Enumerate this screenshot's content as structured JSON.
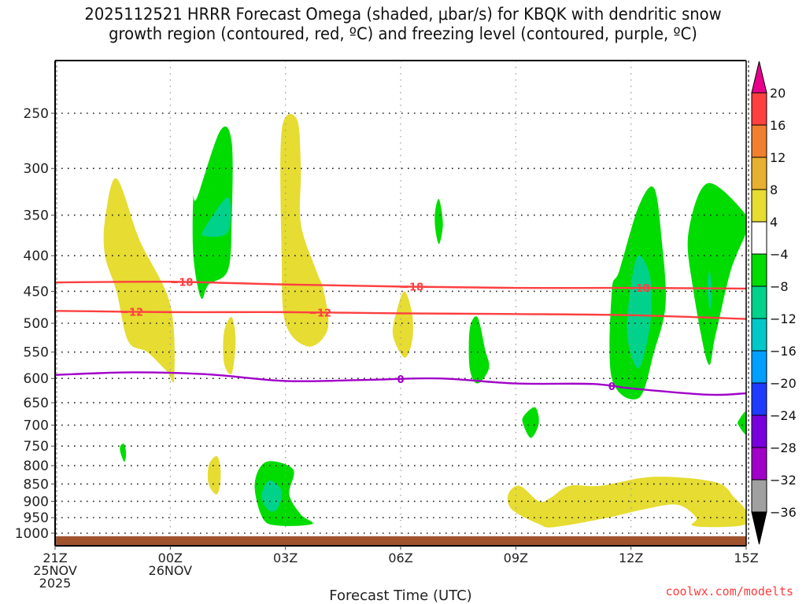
{
  "chart_data": {
    "type": "heatmap",
    "title_lines": [
      "2025112521 HRRR Forecast Omega (shaded, μbar/s) for KBQK with dendritic snow",
      "growth region (contoured, red, ºC) and freezing level (contoured, purple, ºC)"
    ],
    "xlabel": "Forecast Time (UTC)",
    "ylabel": "",
    "credit": "coolwx.com/modelts",
    "x_range_hours": [
      0,
      18
    ],
    "x_ticks": [
      {
        "hour": 0,
        "lines": [
          "21Z",
          "25NOV",
          "2025"
        ]
      },
      {
        "hour": 3,
        "lines": [
          "00Z",
          "26NOV"
        ]
      },
      {
        "hour": 6,
        "lines": [
          "03Z"
        ]
      },
      {
        "hour": 9,
        "lines": [
          "06Z"
        ]
      },
      {
        "hour": 12,
        "lines": [
          "09Z"
        ]
      },
      {
        "hour": 15,
        "lines": [
          "12Z"
        ]
      },
      {
        "hour": 18,
        "lines": [
          "15Z"
        ]
      }
    ],
    "y_axis": {
      "scale": "log-pressure",
      "range_hPa": [
        1020,
        200
      ],
      "inverted": true
    },
    "y_ticks": [
      250,
      300,
      350,
      400,
      450,
      500,
      550,
      600,
      650,
      700,
      750,
      800,
      850,
      900,
      950,
      1000
    ],
    "grid": "dotted",
    "ground_fill": {
      "from_hPa": 1010,
      "color": "#a0522d"
    },
    "colorbar": {
      "position": "right",
      "tick_labels": [
        "20",
        "16",
        "12",
        "8",
        "4",
        "-4",
        "-8",
        "-12",
        "-16",
        "-20",
        "-24",
        "-28",
        "-32",
        "-36"
      ],
      "bins": [
        {
          "range": ">20",
          "color": "#e8008a"
        },
        {
          "range": "16-20",
          "color": "#ff4040"
        },
        {
          "range": "12-16",
          "color": "#f08030"
        },
        {
          "range": "8-12",
          "color": "#e8b030"
        },
        {
          "range": "4-8",
          "color": "#e6dc32"
        },
        {
          "range": "-4-4",
          "color": "#ffffff"
        },
        {
          "range": "-8--4",
          "color": "#00dc00"
        },
        {
          "range": "-12--8",
          "color": "#00d28c"
        },
        {
          "range": "-16--12",
          "color": "#00c8c8"
        },
        {
          "range": "-20--16",
          "color": "#00a0ff"
        },
        {
          "range": "-24--20",
          "color": "#1e3cff"
        },
        {
          "range": "-28--24",
          "color": "#7800dc"
        },
        {
          "range": "-32--28",
          "color": "#a000c8"
        },
        {
          "range": "-36--32",
          "color": "#a0a0a0"
        },
        {
          "range": "<-36",
          "color": "#000000"
        }
      ]
    },
    "shaded_regions": [
      {
        "name": "yellow-plume-a",
        "bin": "4-8",
        "points": [
          [
            1.3,
            355
          ],
          [
            1.6,
            310
          ],
          [
            2.2,
            380
          ],
          [
            3.0,
            470
          ],
          [
            3.1,
            600
          ],
          [
            2.9,
            585
          ],
          [
            2.4,
            550
          ],
          [
            1.9,
            530
          ],
          [
            1.6,
            450
          ],
          [
            1.3,
            400
          ]
        ]
      },
      {
        "name": "green-cell-a",
        "bin": "-8--4",
        "points": [
          [
            3.7,
            330
          ],
          [
            4.3,
            265
          ],
          [
            4.6,
            275
          ],
          [
            4.6,
            355
          ],
          [
            4.5,
            420
          ],
          [
            4.0,
            440
          ],
          [
            3.8,
            460
          ],
          [
            3.6,
            400
          ],
          [
            3.6,
            330
          ]
        ]
      },
      {
        "name": "teal-core-a",
        "bin": "-12--8",
        "points": [
          [
            3.9,
            365
          ],
          [
            4.5,
            330
          ],
          [
            4.5,
            370
          ],
          [
            3.9,
            375
          ]
        ]
      },
      {
        "name": "yellow-plume-b",
        "bin": "4-8",
        "points": [
          [
            5.9,
            265
          ],
          [
            6.3,
            255
          ],
          [
            6.4,
            300
          ],
          [
            6.4,
            360
          ],
          [
            6.8,
            420
          ],
          [
            7.0,
            450
          ],
          [
            7.1,
            510
          ],
          [
            6.6,
            540
          ],
          [
            6.0,
            500
          ],
          [
            5.9,
            400
          ]
        ]
      },
      {
        "name": "yellow-blob-c",
        "bin": "4-8",
        "points": [
          [
            4.4,
            515
          ],
          [
            4.6,
            490
          ],
          [
            4.7,
            530
          ],
          [
            4.6,
            590
          ],
          [
            4.4,
            570
          ]
        ]
      },
      {
        "name": "yellow-blob-d",
        "bin": "4-8",
        "points": [
          [
            8.9,
            480
          ],
          [
            9.1,
            450
          ],
          [
            9.3,
            485
          ],
          [
            9.3,
            530
          ],
          [
            9.1,
            560
          ],
          [
            8.8,
            520
          ]
        ]
      },
      {
        "name": "green-small-e",
        "bin": "-8--4",
        "points": [
          [
            9.9,
            345
          ],
          [
            10.0,
            332
          ],
          [
            10.1,
            360
          ],
          [
            10.0,
            385
          ],
          [
            9.9,
            365
          ]
        ]
      },
      {
        "name": "green-blob-f",
        "bin": "-8--4",
        "points": [
          [
            10.8,
            510
          ],
          [
            11.0,
            490
          ],
          [
            11.2,
            545
          ],
          [
            11.3,
            580
          ],
          [
            11.0,
            610
          ],
          [
            10.8,
            580
          ]
        ]
      },
      {
        "name": "green-cell-g",
        "bin": "-8--4",
        "points": [
          [
            14.7,
            420
          ],
          [
            15.2,
            340
          ],
          [
            15.6,
            320
          ],
          [
            15.8,
            380
          ],
          [
            15.9,
            470
          ],
          [
            15.6,
            550
          ],
          [
            15.2,
            640
          ],
          [
            14.5,
            600
          ],
          [
            14.5,
            450
          ]
        ]
      },
      {
        "name": "teal-core-g",
        "bin": "-12--8",
        "points": [
          [
            15.0,
            440
          ],
          [
            15.2,
            400
          ],
          [
            15.5,
            430
          ],
          [
            15.5,
            500
          ],
          [
            15.2,
            580
          ],
          [
            14.9,
            520
          ]
        ]
      },
      {
        "name": "green-cell-h",
        "bin": "-8--4",
        "points": [
          [
            16.5,
            370
          ],
          [
            17.0,
            315
          ],
          [
            18.0,
            350
          ],
          [
            18.0,
            370
          ],
          [
            17.6,
            420
          ],
          [
            17.2,
            520
          ],
          [
            17.0,
            570
          ],
          [
            16.6,
            440
          ]
        ]
      },
      {
        "name": "teal-sliver-h",
        "bin": "-12--8",
        "points": [
          [
            17.0,
            440
          ],
          [
            17.05,
            420
          ],
          [
            17.1,
            450
          ],
          [
            17.05,
            480
          ]
        ]
      },
      {
        "name": "green-blob-i",
        "bin": "-8--4",
        "points": [
          [
            12.2,
            680
          ],
          [
            12.5,
            660
          ],
          [
            12.6,
            695
          ],
          [
            12.4,
            730
          ],
          [
            12.2,
            700
          ]
        ]
      },
      {
        "name": "green-blob-j",
        "bin": "-8--4",
        "points": [
          [
            17.8,
            690
          ],
          [
            18.0,
            670
          ],
          [
            18.0,
            720
          ],
          [
            17.8,
            700
          ]
        ]
      },
      {
        "name": "green-small-k",
        "bin": "-8--4",
        "points": [
          [
            1.7,
            750
          ],
          [
            1.8,
            745
          ],
          [
            1.85,
            770
          ],
          [
            1.8,
            790
          ],
          [
            1.7,
            765
          ]
        ]
      },
      {
        "name": "yellow-small-l",
        "bin": "4-8",
        "points": [
          [
            4.0,
            800
          ],
          [
            4.2,
            775
          ],
          [
            4.3,
            800
          ],
          [
            4.3,
            850
          ],
          [
            4.2,
            880
          ],
          [
            4.0,
            850
          ]
        ]
      },
      {
        "name": "green-low-m",
        "bin": "-8--4",
        "points": [
          [
            5.2,
            850
          ],
          [
            5.5,
            790
          ],
          [
            6.2,
            810
          ],
          [
            6.1,
            880
          ],
          [
            6.4,
            940
          ],
          [
            6.7,
            970
          ],
          [
            5.8,
            975
          ],
          [
            5.4,
            950
          ]
        ]
      },
      {
        "name": "teal-low-m",
        "bin": "-12--8",
        "points": [
          [
            5.4,
            870
          ],
          [
            5.6,
            840
          ],
          [
            5.9,
            870
          ],
          [
            5.8,
            920
          ],
          [
            5.6,
            930
          ],
          [
            5.4,
            900
          ]
        ]
      },
      {
        "name": "yellow-low-n",
        "bin": "4-8",
        "points": [
          [
            11.8,
            880
          ],
          [
            12.1,
            855
          ],
          [
            12.6,
            900
          ],
          [
            12.9,
            890
          ],
          [
            13.4,
            855
          ],
          [
            14.2,
            855
          ],
          [
            15.6,
            830
          ],
          [
            17.2,
            845
          ],
          [
            17.7,
            890
          ],
          [
            18.0,
            930
          ],
          [
            18.0,
            970
          ],
          [
            17.3,
            980
          ],
          [
            16.6,
            975
          ],
          [
            16.7,
            950
          ],
          [
            16.2,
            910
          ],
          [
            15.3,
            925
          ],
          [
            14.4,
            950
          ],
          [
            13.0,
            980
          ],
          [
            12.6,
            970
          ],
          [
            11.9,
            925
          ]
        ]
      }
    ],
    "contours": [
      {
        "name": "dgz-minus-18",
        "color": "#ff4040",
        "label": "−18",
        "x": [
          0,
          3,
          6,
          9,
          12,
          15,
          18
        ],
        "y_hPa": [
          437,
          436,
          440,
          443,
          445,
          445,
          446
        ],
        "label_at_hours": [
          3.3,
          9.3,
          15.2
        ]
      },
      {
        "name": "dgz-minus-12",
        "color": "#ff4040",
        "label": "−12",
        "x": [
          0,
          3,
          6,
          9,
          12,
          15,
          18
        ],
        "y_hPa": [
          480,
          482,
          482,
          484,
          485,
          487,
          493
        ],
        "label_at_hours": [
          2.0,
          6.9
        ]
      },
      {
        "name": "freezing-level-0",
        "color": "#a000c8",
        "label": "0",
        "x": [
          0,
          2,
          4,
          6,
          8,
          10,
          12,
          14,
          15,
          17,
          18
        ],
        "y_hPa": [
          593,
          588,
          592,
          605,
          603,
          600,
          610,
          611,
          620,
          633,
          630
        ],
        "label_at_hours": [
          9.0,
          14.5
        ]
      }
    ]
  }
}
